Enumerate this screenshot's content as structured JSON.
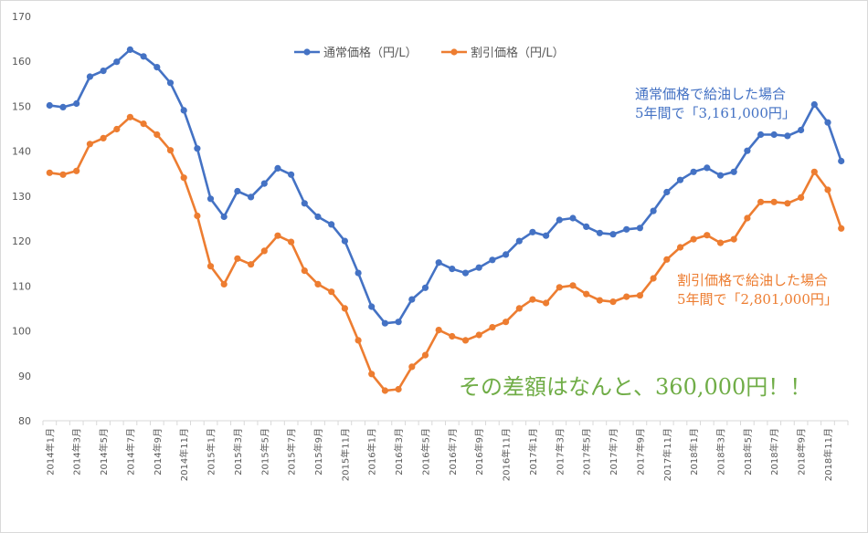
{
  "chart_data": {
    "type": "line",
    "title": "",
    "xlabel": "",
    "ylabel": "",
    "ylim": [
      80,
      170
    ],
    "y_ticks": [
      "80",
      "90",
      "100",
      "110",
      "120",
      "130",
      "140",
      "150",
      "160",
      "170"
    ],
    "grid": false,
    "legend_position": "top-center",
    "categories": [
      "2014年1月",
      "2014年2月",
      "2014年3月",
      "2014年4月",
      "2014年5月",
      "2014年6月",
      "2014年7月",
      "2014年8月",
      "2014年9月",
      "2014年10月",
      "2014年11月",
      "2014年12月",
      "2015年1月",
      "2015年2月",
      "2015年3月",
      "2015年4月",
      "2015年5月",
      "2015年6月",
      "2015年7月",
      "2015年8月",
      "2015年9月",
      "2015年10月",
      "2015年11月",
      "2015年12月",
      "2016年1月",
      "2016年2月",
      "2016年3月",
      "2016年4月",
      "2016年5月",
      "2016年6月",
      "2016年7月",
      "2016年8月",
      "2016年9月",
      "2016年10月",
      "2016年11月",
      "2016年12月",
      "2017年1月",
      "2017年2月",
      "2017年3月",
      "2017年4月",
      "2017年5月",
      "2017年6月",
      "2017年7月",
      "2017年8月",
      "2017年9月",
      "2017年10月",
      "2017年11月",
      "2017年12月",
      "2018年1月",
      "2018年2月",
      "2018年3月",
      "2018年4月",
      "2018年5月",
      "2018年6月",
      "2018年7月",
      "2018年8月",
      "2018年9月",
      "2018年10月",
      "2018年11月",
      "2018年12月"
    ],
    "tick_labels": [
      "2014年1月",
      "2014年3月",
      "2014年5月",
      "2014年7月",
      "2014年9月",
      "2014年11月",
      "2015年1月",
      "2015年3月",
      "2015年5月",
      "2015年7月",
      "2015年9月",
      "2015年11月",
      "2016年1月",
      "2016年3月",
      "2016年5月",
      "2016年7月",
      "2016年9月",
      "2016年11月",
      "2017年1月",
      "2017年3月",
      "2017年5月",
      "2017年7月",
      "2017年9月",
      "2017年11月",
      "2018年1月",
      "2018年3月",
      "2018年5月",
      "2018年7月",
      "2018年9月",
      "2018年11月"
    ],
    "series": [
      {
        "name": "通常価格（円/L）",
        "color": "#4472c4",
        "values": [
          150.2,
          149.8,
          150.6,
          156.6,
          157.9,
          159.9,
          162.6,
          161.1,
          158.7,
          155.2,
          149.1,
          140.6,
          129.4,
          125.4,
          131.1,
          129.8,
          132.8,
          136.2,
          134.8,
          128.4,
          125.4,
          123.7,
          120.0,
          112.9,
          105.4,
          101.7,
          102.0,
          107.0,
          109.6,
          115.2,
          113.8,
          112.9,
          114.1,
          115.8,
          117.0,
          120.0,
          122.0,
          121.2,
          124.7,
          125.1,
          123.2,
          121.8,
          121.5,
          122.6,
          122.9,
          126.7,
          130.9,
          133.6,
          135.4,
          136.3,
          134.6,
          135.4,
          140.1,
          143.7,
          143.7,
          143.4,
          144.7,
          150.4,
          146.4,
          137.8
        ]
      },
      {
        "name": "割引価格（円/L）",
        "color": "#ed7d31",
        "values": [
          135.2,
          134.8,
          135.6,
          141.6,
          142.9,
          144.9,
          147.6,
          146.1,
          143.7,
          140.2,
          134.1,
          125.6,
          114.4,
          110.4,
          116.1,
          114.8,
          117.8,
          121.2,
          119.8,
          113.4,
          110.4,
          108.7,
          105.0,
          97.9,
          90.4,
          86.7,
          87.0,
          92.0,
          94.6,
          100.2,
          98.8,
          97.9,
          99.1,
          100.8,
          102.0,
          105.0,
          107.0,
          106.2,
          109.7,
          110.1,
          108.2,
          106.8,
          106.5,
          107.6,
          107.9,
          111.7,
          115.9,
          118.6,
          120.4,
          121.3,
          119.6,
          120.4,
          125.1,
          128.7,
          128.7,
          128.4,
          129.7,
          135.4,
          131.4,
          122.8
        ]
      }
    ]
  },
  "annotations": {
    "regular_line1": "通常価格で給油した場合",
    "regular_line2": "5年間で「3,161,000円」",
    "regular_color": "#4472c4",
    "discount_line1": "割引価格で給油した場合",
    "discount_line2": "5年間で「2,801,000円」",
    "discount_color": "#ed7d31",
    "difference": "その差額はなんと、360,000円！！",
    "difference_color": "#70ad47"
  }
}
